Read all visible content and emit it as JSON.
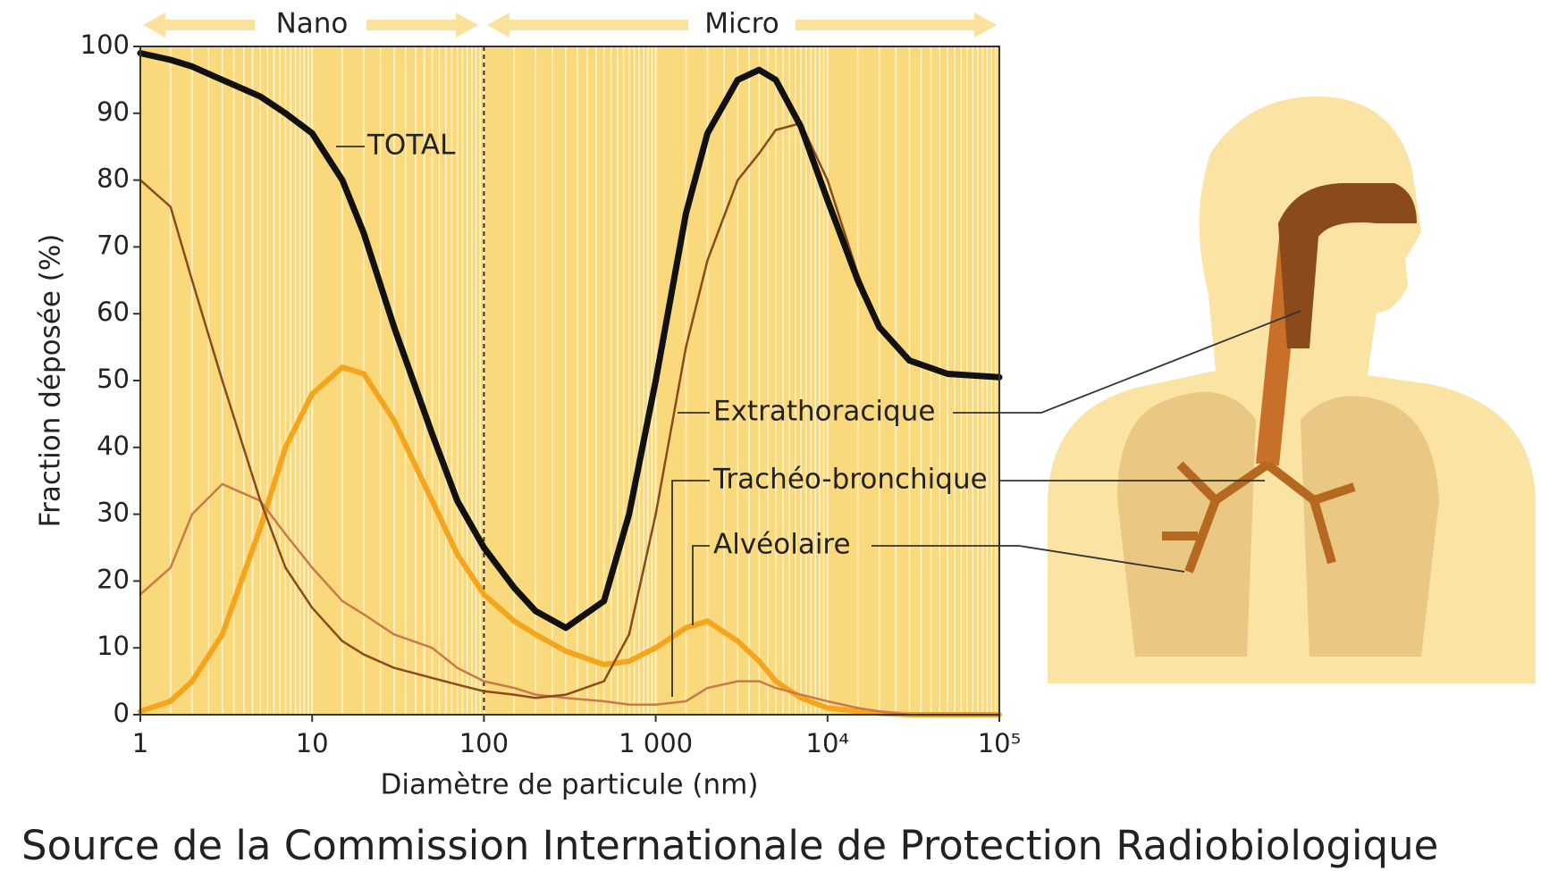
{
  "chart_data": {
    "type": "line",
    "xlabel": "Diamètre de particule (nm)",
    "ylabel": "Fraction déposée (%)",
    "regions": [
      "Nano",
      "Micro"
    ],
    "divider": 100,
    "source": "Source de la Commission Internationale de Protection Radiobiologique",
    "xscale": "log",
    "xgrid": true,
    "xlim": [
      1,
      100000
    ],
    "ylim": [
      0,
      100
    ],
    "xticks": [
      1,
      10,
      100,
      {
        "value": 1000,
        "label": "1 000"
      },
      {
        "value": 10000,
        "label": "10⁴"
      },
      {
        "value": 100000,
        "label": "10⁵"
      }
    ],
    "yticks": [
      0,
      10,
      20,
      30,
      40,
      50,
      60,
      70,
      80,
      90,
      100
    ],
    "x": [
      1,
      1.5,
      2,
      3,
      5,
      7,
      10,
      15,
      20,
      30,
      50,
      70,
      100,
      150,
      200,
      300,
      500,
      700,
      1000,
      1500,
      2000,
      3000,
      4000,
      5000,
      7000,
      10000,
      15000,
      20000,
      30000,
      50000,
      100000
    ],
    "series": [
      {
        "name": "TOTAL",
        "color": "#111111",
        "values": [
          99,
          98,
          97,
          95,
          92.5,
          90,
          87,
          80,
          72,
          58,
          42,
          32,
          25,
          19,
          15.5,
          13,
          17,
          30,
          50,
          75,
          87,
          95,
          96.5,
          95,
          88,
          77,
          65,
          58,
          53,
          51,
          50.5
        ]
      },
      {
        "name": "Extrathoracique",
        "color": "#8b4a1c",
        "values": [
          80,
          76,
          65,
          50,
          32,
          22,
          16,
          11,
          9,
          7,
          5.5,
          4.5,
          3.5,
          3,
          2.5,
          3,
          5,
          12,
          30,
          55,
          68,
          80,
          84,
          87.5,
          88.5,
          80,
          66,
          58,
          53,
          51,
          50.5
        ]
      },
      {
        "name": "Trachéo-bronchique",
        "color": "#c97a4a",
        "values": [
          18,
          22,
          30,
          34.5,
          32,
          27,
          22,
          17,
          15,
          12,
          10,
          7,
          5,
          4,
          3,
          2.5,
          2,
          1.5,
          1.5,
          2,
          4,
          5,
          5,
          4,
          3,
          2,
          1,
          0.5,
          0,
          0,
          0
        ]
      },
      {
        "name": "Alvéolaire",
        "color": "#f5a51c",
        "values": [
          0.5,
          2,
          5,
          12,
          28,
          40,
          48,
          52,
          51,
          44,
          32,
          24,
          18,
          14,
          12,
          9.5,
          7.5,
          8,
          10,
          13,
          14,
          11,
          8,
          5,
          2.5,
          1,
          0.5,
          0.2,
          0,
          0,
          0
        ]
      }
    ]
  }
}
